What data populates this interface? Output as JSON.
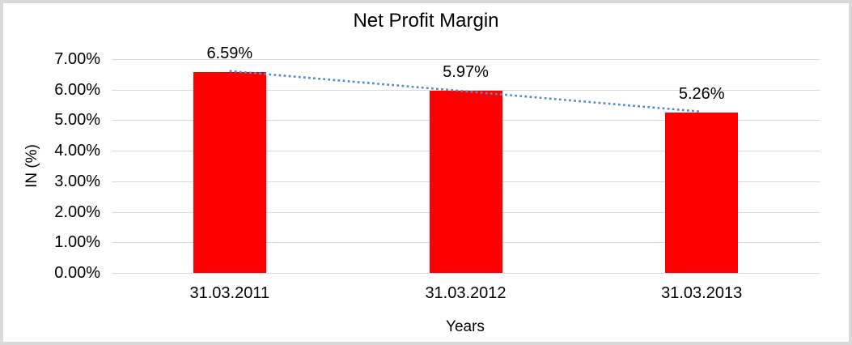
{
  "chart_data": {
    "type": "bar",
    "title": "Net Profit Margin",
    "xlabel": "Years",
    "ylabel": "IN (%)",
    "categories": [
      "31.03.2011",
      "31.03.2012",
      "31.03.2013"
    ],
    "series": [
      {
        "name": "Net Profit Margin",
        "values": [
          6.59,
          5.97,
          5.26
        ]
      }
    ],
    "data_labels": [
      "6.59%",
      "5.97%",
      "5.26%"
    ],
    "y_ticks": [
      {
        "label": "7.00%",
        "value": 7.0
      },
      {
        "label": "6.00%",
        "value": 6.0
      },
      {
        "label": "5.00%",
        "value": 5.0
      },
      {
        "label": "4.00%",
        "value": 4.0
      },
      {
        "label": "3.00%",
        "value": 3.0
      },
      {
        "label": "2.00%",
        "value": 2.0
      },
      {
        "label": "1.00%",
        "value": 1.0
      },
      {
        "label": "0.00%",
        "value": 0.0
      }
    ],
    "ylim": [
      0,
      7
    ],
    "grid": true,
    "legend_position": "none",
    "bar_color": "#ff0000",
    "gridline_color": "#d9d9d9",
    "text_color": "#000000",
    "trendline": {
      "type": "linear",
      "style": "dotted",
      "color": "#4f8bc9",
      "start_value": 6.61,
      "end_value": 5.28
    }
  }
}
